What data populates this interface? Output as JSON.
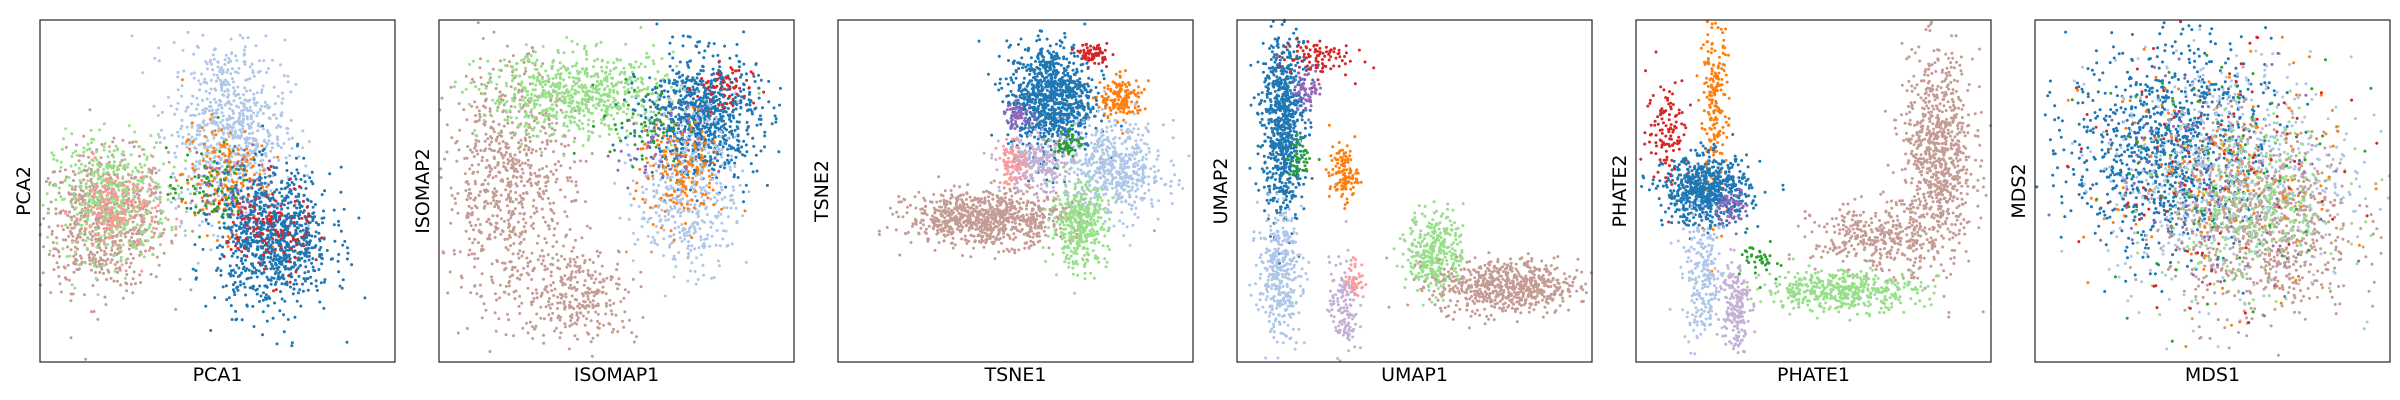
{
  "figure": {
    "background": "#ffffff",
    "point_colors": [
      "#1f77b4",
      "#aec7e8",
      "#ff7f0e",
      "#2ca02c",
      "#98df8a",
      "#d62728",
      "#c49c94",
      "#9467bd",
      "#c5b0d5",
      "#ff9896"
    ]
  },
  "chart_data": [
    {
      "type": "scatter",
      "method": "PCA",
      "xlabel": "PCA1",
      "ylabel": "PCA2",
      "ticks": "hidden",
      "grid": false,
      "legend": "none",
      "xlim": [
        0,
        100
      ],
      "ylim": [
        0,
        100
      ],
      "series": [
        {
          "color": "#c49c94",
          "cx": 18,
          "cy": 41,
          "sx": 9,
          "sy": 10,
          "n": 700
        },
        {
          "color": "#98df8a",
          "cx": 20,
          "cy": 48,
          "sx": 8,
          "sy": 9,
          "n": 450
        },
        {
          "color": "#ff9896",
          "cx": 22,
          "cy": 44,
          "sx": 6,
          "sy": 7,
          "n": 180
        },
        {
          "color": "#aec7e8",
          "cx": 53,
          "cy": 68,
          "sx": 8,
          "sy": 13,
          "n": 750
        },
        {
          "color": "#ff7f0e",
          "cx": 52,
          "cy": 54,
          "sx": 6,
          "sy": 8,
          "n": 180
        },
        {
          "color": "#2ca02c",
          "cx": 48,
          "cy": 50,
          "sx": 6,
          "sy": 6,
          "n": 90
        },
        {
          "color": "#9467bd",
          "cx": 56,
          "cy": 50,
          "sx": 6,
          "sy": 6,
          "n": 80
        },
        {
          "color": "#1f77b4",
          "cx": 66,
          "cy": 36,
          "sx": 8,
          "sy": 10,
          "n": 950
        },
        {
          "color": "#d62728",
          "cx": 64,
          "cy": 38,
          "sx": 6,
          "sy": 7,
          "n": 120
        }
      ]
    },
    {
      "type": "scatter",
      "method": "ISOMAP",
      "xlabel": "ISOMAP1",
      "ylabel": "ISOMAP2",
      "ticks": "hidden",
      "grid": false,
      "legend": "none",
      "xlim": [
        0,
        100
      ],
      "ylim": [
        0,
        100
      ],
      "series": [
        {
          "color": "#c49c94",
          "cx": 20,
          "cy": 52,
          "sx": 9,
          "sy": 18,
          "n": 750
        },
        {
          "color": "#c49c94",
          "cx": 40,
          "cy": 20,
          "sx": 8,
          "sy": 7,
          "n": 280
        },
        {
          "color": "#98df8a",
          "cx": 40,
          "cy": 78,
          "sx": 14,
          "sy": 6,
          "n": 700
        },
        {
          "color": "#1f77b4",
          "cx": 74,
          "cy": 72,
          "sx": 8,
          "sy": 9,
          "n": 850
        },
        {
          "color": "#aec7e8",
          "cx": 70,
          "cy": 50,
          "sx": 7,
          "sy": 12,
          "n": 450
        },
        {
          "color": "#ff7f0e",
          "cx": 68,
          "cy": 55,
          "sx": 6,
          "sy": 8,
          "n": 160
        },
        {
          "color": "#d62728",
          "cx": 80,
          "cy": 80,
          "sx": 4,
          "sy": 4,
          "n": 60
        },
        {
          "color": "#9467bd",
          "cx": 62,
          "cy": 62,
          "sx": 6,
          "sy": 6,
          "n": 60
        },
        {
          "color": "#2ca02c",
          "cx": 58,
          "cy": 70,
          "sx": 6,
          "sy": 6,
          "n": 60
        }
      ]
    },
    {
      "type": "scatter",
      "method": "TSNE",
      "xlabel": "TSNE1",
      "ylabel": "TSNE2",
      "ticks": "hidden",
      "grid": false,
      "legend": "none",
      "xlim": [
        0,
        100
      ],
      "ylim": [
        0,
        100
      ],
      "series": [
        {
          "color": "#1f77b4",
          "cx": 60,
          "cy": 77,
          "sx": 6,
          "sy": 8,
          "n": 1000
        },
        {
          "color": "#aec7e8",
          "cx": 78,
          "cy": 56,
          "sx": 7,
          "sy": 7,
          "n": 550
        },
        {
          "color": "#c49c94",
          "cx": 42,
          "cy": 42,
          "sx": 11,
          "sy": 4,
          "n": 850
        },
        {
          "color": "#98df8a",
          "cx": 68,
          "cy": 40,
          "sx": 4,
          "sy": 6,
          "n": 380
        },
        {
          "color": "#ff7f0e",
          "cx": 80,
          "cy": 77,
          "sx": 3,
          "sy": 3,
          "n": 160
        },
        {
          "color": "#d62728",
          "cx": 72,
          "cy": 90,
          "sx": 2,
          "sy": 1.5,
          "n": 70
        },
        {
          "color": "#c5b0d5",
          "cx": 56,
          "cy": 58,
          "sx": 5,
          "sy": 4,
          "n": 260
        },
        {
          "color": "#ff9896",
          "cx": 49,
          "cy": 58,
          "sx": 2,
          "sy": 3,
          "n": 80
        },
        {
          "color": "#9467bd",
          "cx": 51,
          "cy": 72,
          "sx": 2,
          "sy": 2,
          "n": 60
        },
        {
          "color": "#2ca02c",
          "cx": 65,
          "cy": 64,
          "sx": 2,
          "sy": 2,
          "n": 50
        }
      ]
    },
    {
      "type": "scatter",
      "method": "UMAP",
      "xlabel": "UMAP1",
      "ylabel": "UMAP2",
      "ticks": "hidden",
      "grid": false,
      "legend": "none",
      "xlim": [
        0,
        100
      ],
      "ylim": [
        0,
        100
      ],
      "series": [
        {
          "color": "#1f77b4",
          "cx": 13,
          "cy": 70,
          "sx": 3,
          "sy": 14,
          "n": 800
        },
        {
          "color": "#aec7e8",
          "cx": 12,
          "cy": 26,
          "sx": 3,
          "sy": 9,
          "n": 350
        },
        {
          "color": "#98df8a",
          "cx": 56,
          "cy": 32,
          "sx": 4,
          "sy": 6,
          "n": 350
        },
        {
          "color": "#c49c94",
          "cx": 76,
          "cy": 22,
          "sx": 10,
          "sy": 4,
          "n": 650
        },
        {
          "color": "#ff7f0e",
          "cx": 30,
          "cy": 55,
          "sx": 2,
          "sy": 4,
          "n": 120
        },
        {
          "color": "#d62728",
          "cx": 22,
          "cy": 89,
          "sx": 5,
          "sy": 3,
          "n": 90
        },
        {
          "color": "#c5b0d5",
          "cx": 30,
          "cy": 16,
          "sx": 2,
          "sy": 7,
          "n": 140
        },
        {
          "color": "#ff9896",
          "cx": 33,
          "cy": 24,
          "sx": 1.5,
          "sy": 3,
          "n": 40
        },
        {
          "color": "#9467bd",
          "cx": 20,
          "cy": 80,
          "sx": 2,
          "sy": 3,
          "n": 60
        },
        {
          "color": "#2ca02c",
          "cx": 18,
          "cy": 60,
          "sx": 2,
          "sy": 3,
          "n": 40
        }
      ]
    },
    {
      "type": "scatter",
      "method": "PHATE",
      "xlabel": "PHATE1",
      "ylabel": "PHATE2",
      "ticks": "hidden",
      "grid": false,
      "legend": "none",
      "xlim": [
        0,
        100
      ],
      "ylim": [
        0,
        100
      ],
      "series": [
        {
          "color": "#c49c94",
          "cx": 85,
          "cy": 60,
          "sx": 5,
          "sy": 15,
          "n": 800
        },
        {
          "color": "#c49c94",
          "cx": 68,
          "cy": 36,
          "sx": 9,
          "sy": 5,
          "n": 350
        },
        {
          "color": "#98df8a",
          "cx": 58,
          "cy": 21,
          "sx": 11,
          "sy": 3,
          "n": 450
        },
        {
          "color": "#ff7f0e",
          "cx": 22,
          "cy": 73,
          "sx": 2,
          "sy": 14,
          "n": 220
        },
        {
          "color": "#d62728",
          "cx": 9,
          "cy": 68,
          "sx": 3,
          "sy": 8,
          "n": 120
        },
        {
          "color": "#1f77b4",
          "cx": 20,
          "cy": 50,
          "sx": 6,
          "sy": 5,
          "n": 700
        },
        {
          "color": "#aec7e8",
          "cx": 19,
          "cy": 24,
          "sx": 3,
          "sy": 9,
          "n": 230
        },
        {
          "color": "#c5b0d5",
          "cx": 28,
          "cy": 17,
          "sx": 2,
          "sy": 7,
          "n": 180
        },
        {
          "color": "#9467bd",
          "cx": 27,
          "cy": 45,
          "sx": 2,
          "sy": 3,
          "n": 50
        },
        {
          "color": "#2ca02c",
          "cx": 36,
          "cy": 30,
          "sx": 3,
          "sy": 3,
          "n": 40
        }
      ]
    },
    {
      "type": "scatter",
      "method": "MDS",
      "xlabel": "MDS1",
      "ylabel": "MDS2",
      "ticks": "hidden",
      "grid": false,
      "legend": "none",
      "xlim": [
        0,
        100
      ],
      "ylim": [
        0,
        100
      ],
      "series": [
        {
          "color": "#1f77b4",
          "cx": 38,
          "cy": 62,
          "sx": 14,
          "sy": 15,
          "n": 1100
        },
        {
          "color": "#aec7e8",
          "cx": 55,
          "cy": 55,
          "sx": 17,
          "sy": 17,
          "n": 700
        },
        {
          "color": "#c49c94",
          "cx": 64,
          "cy": 40,
          "sx": 13,
          "sy": 14,
          "n": 800
        },
        {
          "color": "#98df8a",
          "cx": 62,
          "cy": 46,
          "sx": 12,
          "sy": 12,
          "n": 350
        },
        {
          "color": "#ff7f0e",
          "cx": 50,
          "cy": 55,
          "sx": 18,
          "sy": 18,
          "n": 150
        },
        {
          "color": "#d62728",
          "cx": 50,
          "cy": 55,
          "sx": 18,
          "sy": 18,
          "n": 100
        },
        {
          "color": "#9467bd",
          "cx": 50,
          "cy": 55,
          "sx": 18,
          "sy": 18,
          "n": 80
        },
        {
          "color": "#2ca02c",
          "cx": 50,
          "cy": 55,
          "sx": 18,
          "sy": 18,
          "n": 80
        }
      ]
    }
  ]
}
